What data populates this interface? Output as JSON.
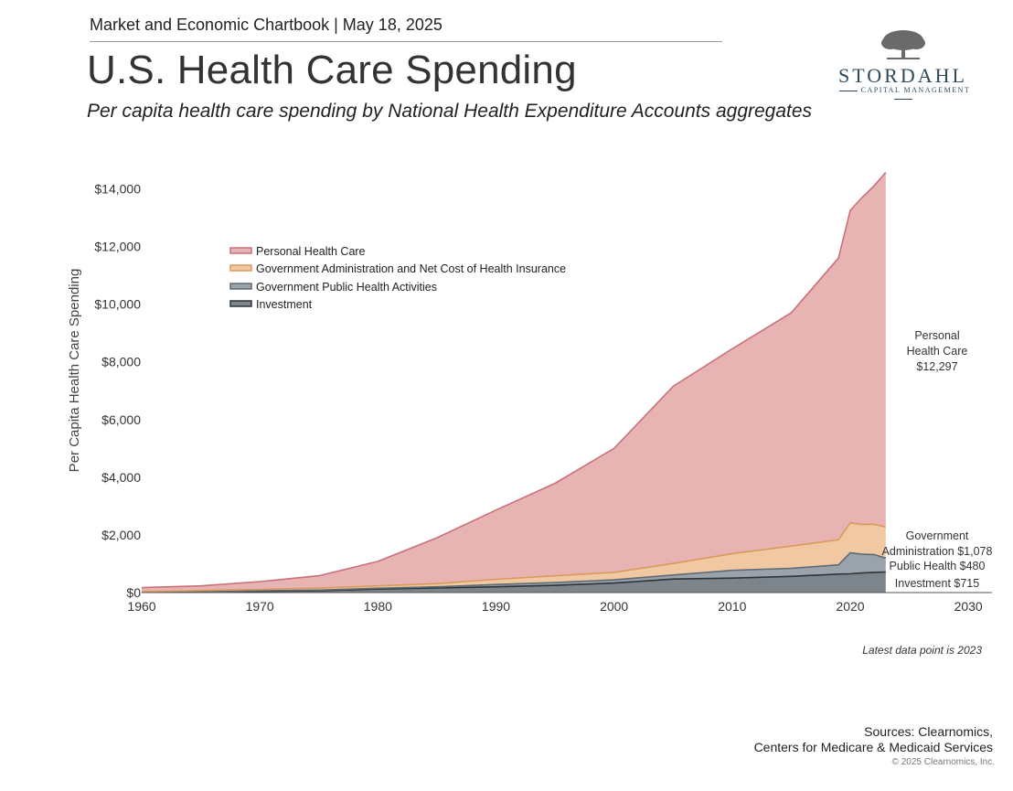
{
  "header": {
    "chartbook": "Market and Economic Chartbook | May 18, 2025",
    "title": "U.S. Health Care Spending",
    "subtitle": "Per capita health care spending by National Health Expenditure Accounts aggregates"
  },
  "logo": {
    "name": "STORDAHL",
    "tagline": "CAPITAL MANAGEMENT"
  },
  "colors": {
    "personal_fill": "#e8b3b3",
    "personal_line": "#c9707a",
    "admin_fill": "#f0c9a3",
    "admin_line": "#d99a5c",
    "public_fill": "#9aa3ab",
    "public_line": "#5f6a74",
    "invest_fill": "#7d858c",
    "invest_line": "#2e3439"
  },
  "chart_data": {
    "type": "area",
    "title": "U.S. Health Care Spending",
    "ylabel": "Per Capita Health Care Spending",
    "xlabel": "",
    "xlim": [
      1960,
      2032
    ],
    "ylim": [
      0,
      15000
    ],
    "x_ticks": [
      "1960",
      "1970",
      "1980",
      "1990",
      "2000",
      "2010",
      "2020",
      "2030"
    ],
    "y_ticks": [
      "$0",
      "$2,000",
      "$4,000",
      "$6,000",
      "$8,000",
      "$10,000",
      "$12,000",
      "$14,000"
    ],
    "y_tick_values": [
      0,
      2000,
      4000,
      6000,
      8000,
      10000,
      12000,
      14000
    ],
    "stacking": "stacked (cumulative top edges)",
    "years": [
      1960,
      1965,
      1970,
      1975,
      1980,
      1985,
      1990,
      1995,
      2000,
      2005,
      2010,
      2015,
      2019,
      2020,
      2021,
      2022,
      2023
    ],
    "series": [
      {
        "name": "Investment",
        "values": [
          10,
          20,
          40,
          60,
          120,
          160,
          200,
          250,
          330,
          470,
          500,
          560,
          640,
          650,
          680,
          700,
          715
        ]
      },
      {
        "name": "Government Public Health Activities",
        "values": [
          5,
          10,
          20,
          25,
          30,
          40,
          80,
          100,
          110,
          140,
          270,
          280,
          320,
          730,
          650,
          620,
          480
        ]
      },
      {
        "name": "Government Administration and Net Cost of Health Insurance",
        "values": [
          20,
          40,
          50,
          70,
          80,
          110,
          180,
          230,
          260,
          400,
          580,
          770,
          870,
          1040,
          1030,
          1050,
          1078
        ]
      },
      {
        "name": "Personal Health Care",
        "values": [
          135,
          160,
          270,
          430,
          850,
          1590,
          2400,
          3210,
          4300,
          6140,
          7100,
          8090,
          9770,
          10830,
          11340,
          11730,
          12297
        ]
      }
    ],
    "totals": [
      170,
      230,
      380,
      585,
      1080,
      1900,
      2860,
      3790,
      5000,
      7150,
      8450,
      9700,
      11600,
      13250,
      13700,
      14100,
      14570
    ],
    "legend": [
      "Personal Health Care",
      "Government Administration and Net Cost of Health Insurance",
      "Government Public Health Activities",
      "Investment"
    ],
    "legend_position": "upper-left",
    "annotations": {
      "personal": [
        "Personal",
        "Health Care",
        "$12,297"
      ],
      "admin": [
        "Government",
        "Administration $1,078"
      ],
      "public": "Public Health $480",
      "investment": "Investment $715"
    },
    "note": "Latest data point is 2023"
  },
  "footer": {
    "sources_line1": "Sources: Clearnomics,",
    "sources_line2": "Centers for Medicare & Medicaid Services",
    "copyright": "© 2025 Clearnomics, Inc."
  }
}
